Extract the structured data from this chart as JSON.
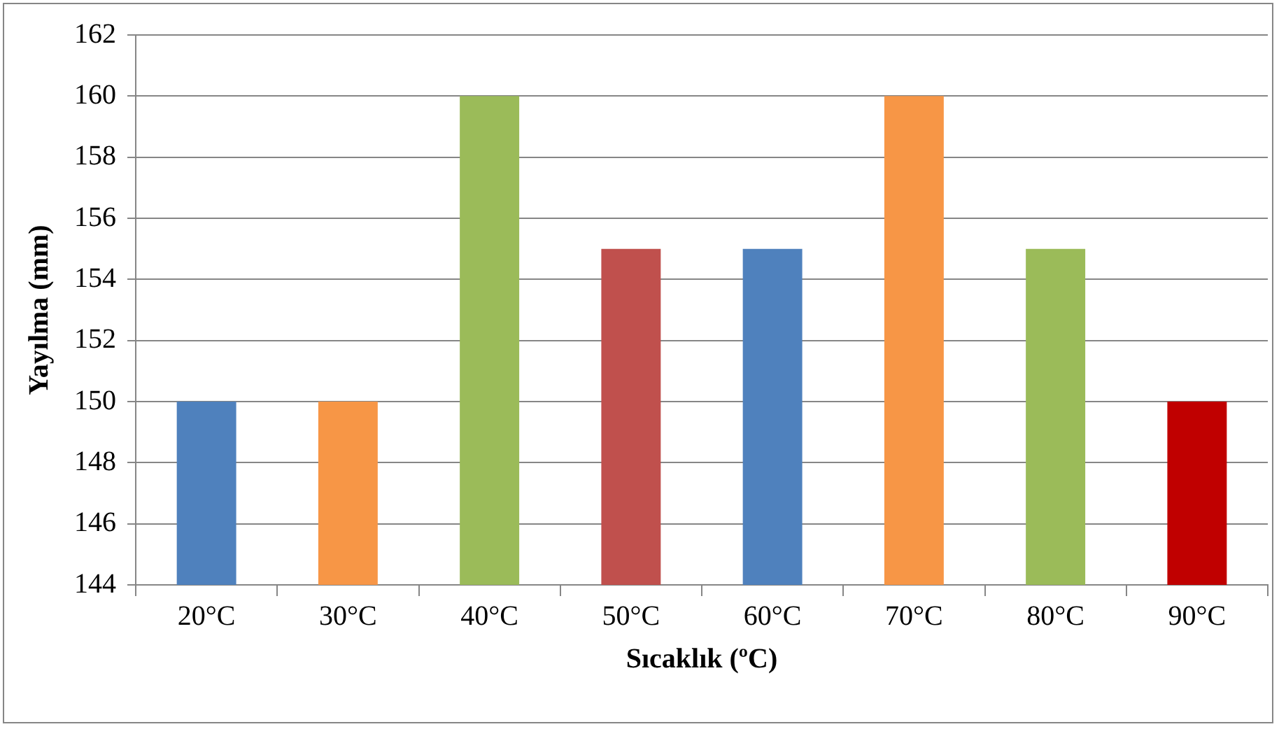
{
  "chart_data": {
    "type": "bar",
    "xlabel": "Sıcaklık (ºC)",
    "ylabel": "Yayılma (mm)",
    "categories": [
      "20°C",
      "30°C",
      "40°C",
      "50°C",
      "60°C",
      "70°C",
      "80°C",
      "90°C"
    ],
    "values": [
      150,
      150,
      160,
      155,
      155,
      160,
      155,
      150
    ],
    "colors": [
      "#4f81bd",
      "#f79646",
      "#9bbb59",
      "#c0504d",
      "#4f81bd",
      "#f79646",
      "#9bbb59",
      "#c00000"
    ],
    "ylim": [
      144,
      162
    ],
    "yticks": [
      144,
      146,
      148,
      150,
      152,
      154,
      156,
      158,
      160,
      162
    ],
    "grid": "y"
  }
}
